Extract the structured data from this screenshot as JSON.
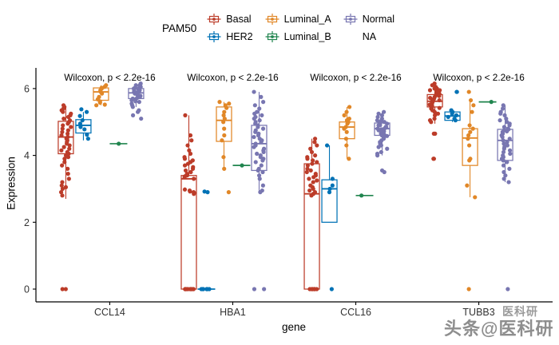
{
  "legend": {
    "title": "PAM50",
    "items": [
      {
        "label": "Basal",
        "color": "#BC3C29"
      },
      {
        "label": "HER2",
        "color": "#0072B5"
      },
      {
        "label": "Luminal_A",
        "color": "#E18727"
      },
      {
        "label": "Luminal_B",
        "color": "#20854E"
      },
      {
        "label": "Normal",
        "color": "#7876B1"
      },
      {
        "label": "NA",
        "color": null
      }
    ]
  },
  "axes": {
    "x_label": "gene",
    "y_label": "Expression",
    "y_ticks": [
      0,
      2,
      4,
      6
    ],
    "y_range": [
      0,
      6.2
    ]
  },
  "annotation": {
    "text": "Wilcoxon, p < 2.2e-16"
  },
  "watermark": {
    "small": "医科研",
    "large": "头条@医科研"
  },
  "chart_data": {
    "type": "boxplot-jitter",
    "title": "",
    "xlabel": "gene",
    "ylabel": "Expression",
    "ylim": [
      0,
      6.2
    ],
    "facets": [
      "CCL14",
      "HBA1",
      "CCL16",
      "TUBB3"
    ],
    "subtypes": [
      "Basal",
      "HER2",
      "Luminal_A",
      "Luminal_B",
      "Normal",
      "NA"
    ],
    "colors": {
      "Basal": "#BC3C29",
      "HER2": "#0072B5",
      "Luminal_A": "#E18727",
      "Luminal_B": "#20854E",
      "Normal": "#7876B1"
    },
    "facet_annotation": "Wilcoxon, p < 2.2e-16",
    "genes": [
      {
        "name": "CCL14",
        "boxes": [
          {
            "subtype": "Basal",
            "stats": [
              2.7,
              4.05,
              4.55,
              5.02,
              5.45
            ],
            "points": [
              0,
              0,
              2.8,
              2.9,
              3.0,
              3.05,
              3.1,
              3.2,
              3.3,
              3.45,
              3.6,
              3.7,
              3.8,
              3.9,
              3.95,
              4.0,
              4.05,
              4.1,
              4.15,
              4.2,
              4.25,
              4.3,
              4.35,
              4.4,
              4.45,
              4.5,
              4.55,
              4.6,
              4.65,
              4.7,
              4.75,
              4.8,
              4.85,
              4.9,
              4.95,
              5.0,
              5.05,
              5.1,
              5.15,
              5.2,
              5.25,
              5.3,
              5.35,
              5.4,
              5.45,
              5.5
            ]
          },
          {
            "subtype": "HER2",
            "stats": [
              4.45,
              4.67,
              4.9,
              5.07,
              5.3
            ],
            "points": [
              4.5,
              4.62,
              4.78,
              4.85,
              4.95,
              5.05,
              5.18,
              5.3,
              5.38
            ]
          },
          {
            "subtype": "Luminal_A",
            "stats": [
              5.5,
              5.65,
              5.9,
              6.02,
              6.1
            ],
            "points": [
              5.5,
              5.52,
              5.58,
              5.62,
              5.68,
              5.75,
              5.85,
              5.9,
              5.95,
              6.0,
              6.02,
              6.05,
              6.1
            ]
          },
          {
            "subtype": "Luminal_B",
            "value": 4.35,
            "points": [
              4.35
            ]
          },
          {
            "subtype": "Normal",
            "stats": [
              5.45,
              5.7,
              5.87,
              6.0,
              6.1
            ],
            "points": [
              5.1,
              5.2,
              5.3,
              5.35,
              5.45,
              5.5,
              5.55,
              5.6,
              5.62,
              5.65,
              5.68,
              5.7,
              5.72,
              5.75,
              5.78,
              5.8,
              5.82,
              5.85,
              5.85,
              5.88,
              5.9,
              5.9,
              5.92,
              5.95,
              5.95,
              5.98,
              6.0,
              6.0,
              6.02,
              6.05,
              6.05,
              6.08,
              6.1,
              6.1,
              6.12,
              6.15
            ]
          }
        ]
      },
      {
        "name": "HBA1",
        "boxes": [
          {
            "subtype": "Basal",
            "stats": [
              0,
              0,
              3.3,
              3.4,
              5.2
            ],
            "points": [
              5.2,
              4.6,
              4.45,
              4.3,
              4.15,
              4.05,
              3.95,
              3.9,
              3.85,
              3.8,
              3.75,
              3.7,
              3.65,
              3.6,
              3.55,
              3.5,
              3.45,
              3.4,
              3.38,
              3.35,
              3.3,
              2.98,
              2.95,
              2.92,
              2.9,
              2.88,
              2.85,
              0,
              0,
              0,
              0,
              0,
              0,
              0,
              0,
              0,
              0,
              0,
              0
            ]
          },
          {
            "subtype": "HER2",
            "value": 0,
            "points": [
              2.9,
              2.92,
              0,
              0,
              0,
              0,
              0,
              0,
              0
            ]
          },
          {
            "subtype": "Luminal_A",
            "stats": [
              3.6,
              4.42,
              5.05,
              5.45,
              5.6
            ],
            "points": [
              5.6,
              5.55,
              5.5,
              5.42,
              5.3,
              5.2,
              5.1,
              5.0,
              4.8,
              4.6,
              4.45,
              3.95,
              3.6,
              2.9
            ]
          },
          {
            "subtype": "Luminal_B",
            "value": 3.7,
            "points": [
              3.7
            ]
          },
          {
            "subtype": "Normal",
            "stats": [
              2.9,
              3.55,
              4.35,
              4.9,
              5.9
            ],
            "points": [
              5.9,
              5.75,
              5.6,
              5.5,
              5.4,
              5.3,
              5.25,
              5.2,
              5.15,
              5.1,
              5.05,
              5.0,
              4.95,
              4.9,
              4.85,
              4.8,
              4.75,
              4.7,
              4.65,
              4.6,
              4.55,
              4.5,
              4.45,
              4.4,
              4.35,
              4.3,
              4.25,
              4.2,
              4.15,
              4.1,
              4.05,
              4.0,
              3.95,
              3.9,
              3.85,
              3.8,
              3.7,
              3.6,
              3.55,
              3.5,
              3.4,
              3.3,
              3.1,
              2.95,
              2.9,
              0,
              0
            ]
          }
        ]
      },
      {
        "name": "CCL16",
        "boxes": [
          {
            "subtype": "Basal",
            "stats": [
              0,
              0,
              2.85,
              3.75,
              4.5
            ],
            "points": [
              4.5,
              4.4,
              4.3,
              4.2,
              4.1,
              4.0,
              3.95,
              3.9,
              3.85,
              3.8,
              3.75,
              3.7,
              3.6,
              3.55,
              3.5,
              3.45,
              3.4,
              3.35,
              3.3,
              3.25,
              3.2,
              3.1,
              3.05,
              3.0,
              2.95,
              2.9,
              2.85,
              2.8,
              0,
              0,
              0,
              0,
              0,
              0,
              0,
              0
            ]
          },
          {
            "subtype": "HER2",
            "stats": [
              2.0,
              2.0,
              3.0,
              3.27,
              4.3
            ],
            "points": [
              4.3,
              3.3,
              3.1,
              3.0,
              2.9,
              0
            ]
          },
          {
            "subtype": "Luminal_A",
            "stats": [
              3.9,
              4.5,
              4.85,
              5.0,
              5.45
            ],
            "points": [
              5.45,
              5.3,
              5.2,
              5.1,
              5.05,
              5.0,
              4.95,
              4.85,
              4.8,
              4.7,
              4.5,
              4.3,
              3.9
            ]
          },
          {
            "subtype": "Luminal_B",
            "value": 2.8,
            "points": [
              2.8
            ]
          },
          {
            "subtype": "Normal",
            "stats": [
              4.0,
              4.6,
              4.8,
              4.97,
              5.3
            ],
            "points": [
              5.3,
              5.25,
              5.2,
              5.15,
              5.1,
              5.05,
              5.05,
              5.0,
              5.0,
              4.95,
              4.95,
              4.9,
              4.9,
              4.85,
              4.85,
              4.8,
              4.8,
              4.78,
              4.75,
              4.72,
              4.7,
              4.68,
              4.65,
              4.62,
              4.6,
              4.58,
              4.55,
              4.5,
              4.45,
              4.4,
              4.35,
              4.3,
              4.25,
              4.2,
              4.1,
              4.05,
              4.0,
              3.55,
              3.5
            ]
          }
        ]
      },
      {
        "name": "TUBB3",
        "boxes": [
          {
            "subtype": "Basal",
            "stats": [
              4.95,
              5.45,
              5.62,
              5.82,
              6.15
            ],
            "points": [
              6.15,
              6.1,
              6.05,
              6.0,
              6.0,
              5.95,
              5.95,
              5.9,
              5.9,
              5.85,
              5.85,
              5.82,
              5.8,
              5.78,
              5.75,
              5.72,
              5.7,
              5.68,
              5.65,
              5.62,
              5.6,
              5.58,
              5.55,
              5.52,
              5.5,
              5.45,
              5.42,
              5.4,
              5.35,
              5.3,
              5.25,
              5.2,
              5.1,
              5.05,
              5.0,
              4.65,
              4.65,
              3.9,
              3.9
            ]
          },
          {
            "subtype": "HER2",
            "stats": [
              5.0,
              5.05,
              5.18,
              5.3,
              5.4
            ],
            "points": [
              5.9,
              5.9,
              5.35,
              5.3,
              5.25,
              5.2,
              5.15,
              5.1,
              5.05
            ]
          },
          {
            "subtype": "Luminal_A",
            "stats": [
              2.75,
              3.7,
              4.52,
              4.8,
              5.65
            ],
            "points": [
              5.9,
              5.65,
              5.5,
              5.3,
              4.9,
              4.8,
              4.7,
              4.6,
              4.5,
              4.3,
              3.9,
              3.85,
              3.1,
              2.75,
              0
            ]
          },
          {
            "subtype": "Luminal_B",
            "value": 5.6,
            "points": [
              5.6
            ]
          },
          {
            "subtype": "Normal",
            "stats": [
              3.2,
              3.85,
              4.45,
              4.78,
              5.5
            ],
            "points": [
              5.5,
              5.4,
              5.3,
              5.25,
              5.2,
              5.1,
              5.05,
              5.0,
              4.95,
              4.9,
              4.85,
              4.8,
              4.78,
              4.75,
              4.72,
              4.7,
              4.65,
              4.6,
              4.55,
              4.5,
              4.45,
              4.4,
              4.35,
              4.3,
              4.25,
              4.2,
              4.15,
              4.1,
              4.05,
              4.0,
              3.95,
              3.9,
              3.85,
              3.8,
              3.7,
              3.6,
              3.5,
              3.4,
              3.3,
              3.2,
              0
            ]
          }
        ]
      }
    ]
  }
}
